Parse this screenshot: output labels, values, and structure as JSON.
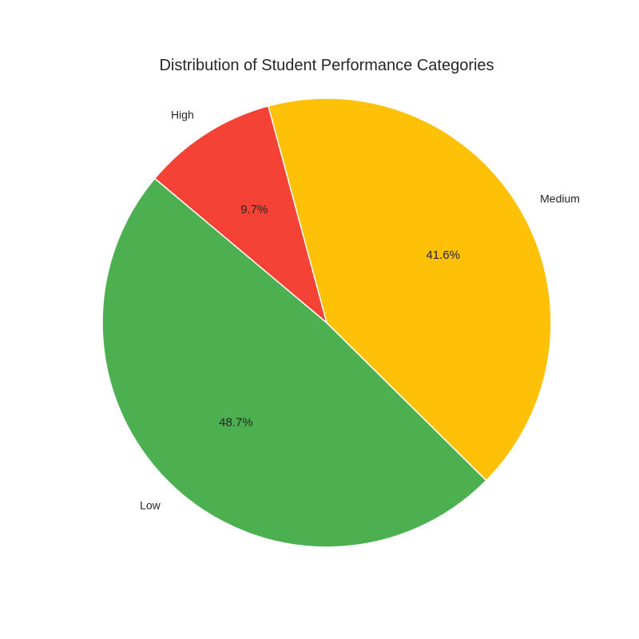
{
  "chart_data": {
    "type": "pie",
    "title": "Distribution of Student Performance Categories",
    "slices": [
      {
        "label": "Low",
        "value": 48.7,
        "pct_label": "48.7%",
        "color": "#4CAF50"
      },
      {
        "label": "Medium",
        "value": 41.6,
        "pct_label": "41.6%",
        "color": "#FFC107"
      },
      {
        "label": "High",
        "value": 9.7,
        "pct_label": "9.7%",
        "color": "#F44336"
      }
    ],
    "start_angle_deg": 140,
    "direction": "counterclockwise",
    "slice_edge_color": "#ffffff",
    "legend": "none"
  }
}
